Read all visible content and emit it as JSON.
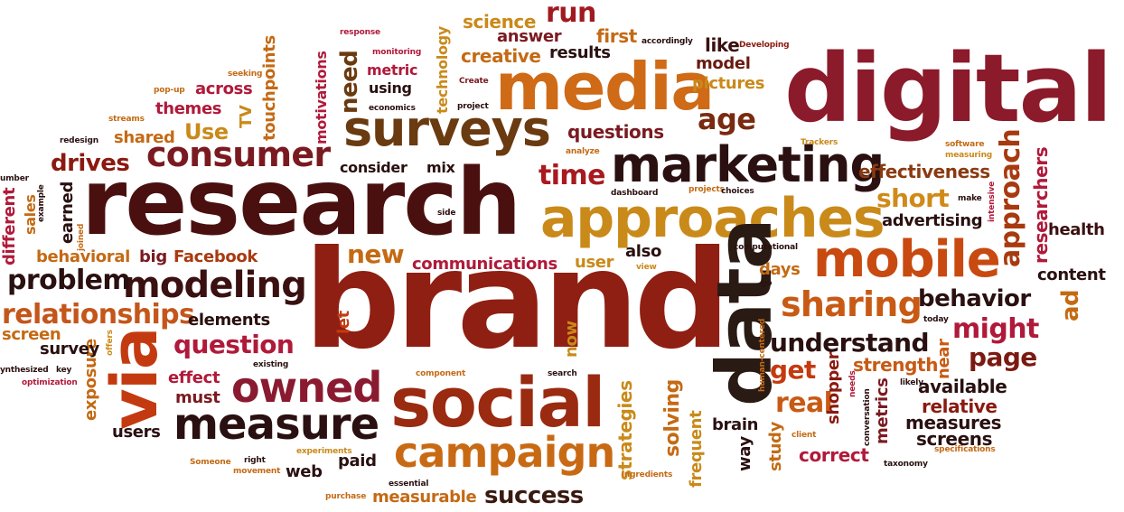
{
  "cloud": {
    "words": [
      {
        "text": "digital",
        "color": "#8b1a2b"
      },
      {
        "text": "research",
        "color": "#4a1010"
      },
      {
        "text": "brand",
        "color": "#8f1f12"
      },
      {
        "text": "approaches",
        "color": "#c98a1a"
      },
      {
        "text": "media",
        "color": "#cf6a16"
      },
      {
        "text": "social",
        "color": "#9a2a10"
      },
      {
        "text": "surveys",
        "color": "#6a3a10"
      },
      {
        "text": "marketing",
        "color": "#2a1010"
      },
      {
        "text": "mobile",
        "color": "#c84a10"
      },
      {
        "text": "data",
        "color": "#2a1a14"
      },
      {
        "text": "campaign",
        "color": "#c86a14"
      },
      {
        "text": "measure",
        "color": "#2a1010"
      },
      {
        "text": "via",
        "color": "#c43a10"
      },
      {
        "text": "consumer",
        "color": "#7a1a20"
      },
      {
        "text": "modeling",
        "color": "#3a1010"
      },
      {
        "text": "owned",
        "color": "#8a1a30"
      },
      {
        "text": "sharing",
        "color": "#c85a14"
      },
      {
        "text": "age",
        "color": "#7a2a10"
      },
      {
        "text": "approach",
        "color": "#a83a10"
      },
      {
        "text": "question",
        "color": "#b01a3a"
      },
      {
        "text": "relationships",
        "color": "#c4561a"
      },
      {
        "text": "problem",
        "color": "#2a1010"
      },
      {
        "text": "understand",
        "color": "#2a1010"
      },
      {
        "text": "might",
        "color": "#b01a3a"
      },
      {
        "text": "page",
        "color": "#7a1a10"
      },
      {
        "text": "behavior",
        "color": "#2a1010"
      },
      {
        "text": "short",
        "color": "#d08a1a"
      },
      {
        "text": "time",
        "color": "#a81a20"
      },
      {
        "text": "run",
        "color": "#a01a20"
      },
      {
        "text": "new",
        "color": "#c46a14"
      },
      {
        "text": "real",
        "color": "#c85a14"
      },
      {
        "text": "get",
        "color": "#c43a10"
      },
      {
        "text": "success",
        "color": "#3a1a10"
      },
      {
        "text": "drives",
        "color": "#8a1a10"
      },
      {
        "text": "Use",
        "color": "#c98a1a"
      },
      {
        "text": "need",
        "color": "#6a3a10"
      },
      {
        "text": "creative",
        "color": "#c46a14"
      },
      {
        "text": "science",
        "color": "#c98a1a"
      },
      {
        "text": "answer",
        "color": "#7a1a20"
      },
      {
        "text": "first",
        "color": "#c46a14"
      },
      {
        "text": "results",
        "color": "#2a1010"
      },
      {
        "text": "like",
        "color": "#3a1010"
      },
      {
        "text": "model",
        "color": "#6a1a10"
      },
      {
        "text": "pictures",
        "color": "#c98a1a"
      },
      {
        "text": "questions",
        "color": "#7a1a20"
      },
      {
        "text": "effectiveness",
        "color": "#8a3a10"
      },
      {
        "text": "advertising",
        "color": "#2a1010"
      },
      {
        "text": "health",
        "color": "#3a1010"
      },
      {
        "text": "content",
        "color": "#2a1010"
      },
      {
        "text": "ad",
        "color": "#c46a14"
      },
      {
        "text": "researchers",
        "color": "#b01a3a"
      },
      {
        "text": "available",
        "color": "#2a1010"
      },
      {
        "text": "relative",
        "color": "#8a1a10"
      },
      {
        "text": "measures",
        "color": "#2a1010"
      },
      {
        "text": "screens",
        "color": "#2a1010"
      },
      {
        "text": "correct",
        "color": "#b01a3a"
      },
      {
        "text": "strength",
        "color": "#c85a14"
      },
      {
        "text": "near",
        "color": "#c85a14"
      },
      {
        "text": "metrics",
        "color": "#7a1a20"
      },
      {
        "text": "shopper",
        "color": "#8a1a10"
      },
      {
        "text": "study",
        "color": "#c46a14"
      },
      {
        "text": "way",
        "color": "#2a1010"
      },
      {
        "text": "brain",
        "color": "#2a1010"
      },
      {
        "text": "frequent",
        "color": "#c98a1a"
      },
      {
        "text": "solving",
        "color": "#c46a14"
      },
      {
        "text": "strategies",
        "color": "#c98a1a"
      },
      {
        "text": "measurable",
        "color": "#c46a14"
      },
      {
        "text": "paid",
        "color": "#2a1010"
      },
      {
        "text": "web",
        "color": "#2a1010"
      },
      {
        "text": "users",
        "color": "#2a1010"
      },
      {
        "text": "must",
        "color": "#7a1a20"
      },
      {
        "text": "effect",
        "color": "#b01a3a"
      },
      {
        "text": "exposure",
        "color": "#c46a14"
      },
      {
        "text": "survey",
        "color": "#2a1010"
      },
      {
        "text": "screen",
        "color": "#c46a14"
      },
      {
        "text": "elements",
        "color": "#2a1010"
      },
      {
        "text": "let",
        "color": "#c43a10"
      },
      {
        "text": "now",
        "color": "#c98a1a"
      },
      {
        "text": "communications",
        "color": "#b01a3a"
      },
      {
        "text": "user",
        "color": "#c98a1a"
      },
      {
        "text": "also",
        "color": "#2a1010"
      },
      {
        "text": "days",
        "color": "#c46a14"
      },
      {
        "text": "Facebook",
        "color": "#a83a10"
      },
      {
        "text": "big",
        "color": "#7a1a20"
      },
      {
        "text": "behavioral",
        "color": "#c46a14"
      },
      {
        "text": "different",
        "color": "#b01a3a"
      },
      {
        "text": "sales",
        "color": "#c46a14"
      },
      {
        "text": "earned",
        "color": "#2a1010"
      },
      {
        "text": "shared",
        "color": "#c46a14"
      },
      {
        "text": "themes",
        "color": "#b01a3a"
      },
      {
        "text": "across",
        "color": "#b01a3a"
      },
      {
        "text": "TV",
        "color": "#c98a1a"
      },
      {
        "text": "touchpoints",
        "color": "#c46a14"
      },
      {
        "text": "motivations",
        "color": "#b01a3a"
      },
      {
        "text": "metric",
        "color": "#b01a3a"
      },
      {
        "text": "using",
        "color": "#2a1010"
      },
      {
        "text": "technology",
        "color": "#c98a1a"
      },
      {
        "text": "consider",
        "color": "#2a1010"
      },
      {
        "text": "mix",
        "color": "#2a1010"
      },
      {
        "text": "response",
        "color": "#b01a3a"
      },
      {
        "text": "monitoring",
        "color": "#b01a3a"
      },
      {
        "text": "accordingly",
        "color": "#2a1010"
      },
      {
        "text": "Developing",
        "color": "#8a1a10"
      },
      {
        "text": "Create",
        "color": "#7a1a20"
      },
      {
        "text": "economics",
        "color": "#2a1010"
      },
      {
        "text": "project",
        "color": "#2a1010"
      },
      {
        "text": "seeking",
        "color": "#c46a14"
      },
      {
        "text": "pop-up",
        "color": "#c46a14"
      },
      {
        "text": "streams",
        "color": "#c46a14"
      },
      {
        "text": "redesign",
        "color": "#2a1010"
      },
      {
        "text": "example",
        "color": "#2a1010"
      },
      {
        "text": "umber",
        "color": "#2a1010"
      },
      {
        "text": "joined",
        "color": "#c46a14"
      },
      {
        "text": "side",
        "color": "#2a1010"
      },
      {
        "text": "analyze",
        "color": "#c46a14"
      },
      {
        "text": "dashboard",
        "color": "#2a1010"
      },
      {
        "text": "projects",
        "color": "#c46a14"
      },
      {
        "text": "choices",
        "color": "#2a1010"
      },
      {
        "text": "Trackers",
        "color": "#c98a1a"
      },
      {
        "text": "software",
        "color": "#c46a14"
      },
      {
        "text": "measuring",
        "color": "#c98a1a"
      },
      {
        "text": "intensive",
        "color": "#b01a3a"
      },
      {
        "text": "make",
        "color": "#2a1010"
      },
      {
        "text": "computational",
        "color": "#2a1010"
      },
      {
        "text": "view",
        "color": "#c98a1a"
      },
      {
        "text": "go",
        "color": "#2a1010"
      },
      {
        "text": "today",
        "color": "#2a1010"
      },
      {
        "text": "human-centered",
        "color": "#c46a14"
      },
      {
        "text": "needs",
        "color": "#b01a3a"
      },
      {
        "text": "conversation",
        "color": "#2a1010"
      },
      {
        "text": "likely",
        "color": "#2a1010"
      },
      {
        "text": "offers",
        "color": "#c98a1a"
      },
      {
        "text": "existing",
        "color": "#2a1010"
      },
      {
        "text": "component",
        "color": "#c46a14"
      },
      {
        "text": "search",
        "color": "#2a1010"
      },
      {
        "text": "ynthesized",
        "color": "#2a1010"
      },
      {
        "text": "key",
        "color": "#2a1010"
      },
      {
        "text": "optimization",
        "color": "#b01a3a"
      },
      {
        "text": "experiments",
        "color": "#c98a1a"
      },
      {
        "text": "right",
        "color": "#2a1010"
      },
      {
        "text": "movement",
        "color": "#c46a14"
      },
      {
        "text": "Someone",
        "color": "#c46a14"
      },
      {
        "text": "purchase",
        "color": "#c46a14"
      },
      {
        "text": "essential",
        "color": "#2a1010"
      },
      {
        "text": "ingredients",
        "color": "#c46a14"
      },
      {
        "text": "client",
        "color": "#c46a14"
      },
      {
        "text": "taxonomy",
        "color": "#2a1010"
      },
      {
        "text": "specifications",
        "color": "#c46a14"
      }
    ]
  }
}
